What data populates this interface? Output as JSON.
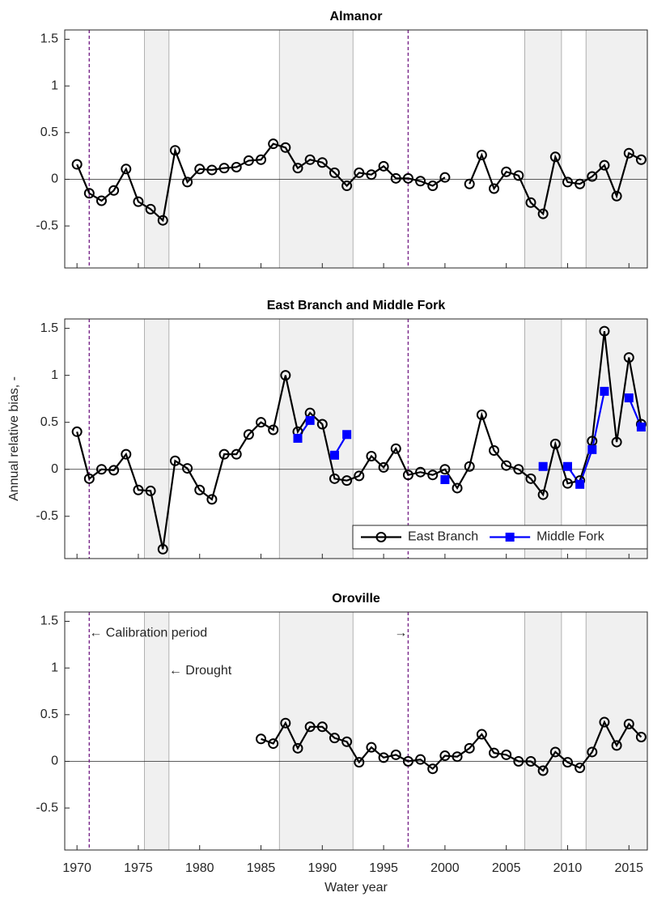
{
  "chart_data": [
    {
      "type": "line",
      "title": "Almanor",
      "x": [
        1970,
        1971,
        1972,
        1973,
        1974,
        1975,
        1976,
        1977,
        1978,
        1979,
        1980,
        1981,
        1982,
        1983,
        1984,
        1985,
        1986,
        1987,
        1988,
        1989,
        1990,
        1991,
        1992,
        1993,
        1994,
        1995,
        1996,
        1997,
        1998,
        1999,
        2000,
        2001,
        2002,
        2003,
        2004,
        2005,
        2006,
        2007,
        2008,
        2009,
        2010,
        2011,
        2012,
        2013,
        2014,
        2015,
        2016
      ],
      "series": [
        {
          "name": "East Branch",
          "color": "#000000",
          "marker": "circle",
          "values": [
            0.16,
            -0.15,
            -0.23,
            -0.12,
            0.11,
            -0.24,
            -0.32,
            -0.44,
            0.31,
            -0.03,
            0.11,
            0.1,
            0.12,
            0.13,
            0.2,
            0.21,
            0.38,
            0.34,
            0.12,
            0.21,
            0.18,
            0.07,
            -0.07,
            0.07,
            0.05,
            0.14,
            0.01,
            0.01,
            -0.02,
            -0.07,
            0.02,
            null,
            -0.05,
            0.26,
            -0.1,
            0.08,
            0.04,
            -0.25,
            -0.37,
            0.24,
            -0.03,
            -0.05,
            0.03,
            0.15,
            -0.18,
            0.28,
            0.21
          ]
        }
      ],
      "xlim": [
        1969,
        2016.5
      ],
      "ylim": [
        -0.95,
        1.6
      ],
      "xticks": [
        1970,
        1975,
        1980,
        1985,
        1990,
        1995,
        2000,
        2005,
        2010,
        2015
      ],
      "yticks": [
        -0.5,
        0,
        0.5,
        1,
        1.5
      ],
      "hline": 0,
      "shaded_regions": [
        [
          1975.5,
          1977.5
        ],
        [
          1986.5,
          1992.5
        ],
        [
          2006.5,
          2009.5
        ],
        [
          2011.5,
          2016.5
        ]
      ],
      "vlines": [
        1971,
        1997
      ]
    },
    {
      "type": "line",
      "title": "East Branch and Middle Fork",
      "y_label": "Annual relative bias, -",
      "x": [
        1970,
        1971,
        1972,
        1973,
        1974,
        1975,
        1976,
        1977,
        1978,
        1979,
        1980,
        1981,
        1982,
        1983,
        1984,
        1985,
        1986,
        1987,
        1988,
        1989,
        1990,
        1991,
        1992,
        1993,
        1994,
        1995,
        1996,
        1997,
        1998,
        1999,
        2000,
        2001,
        2002,
        2003,
        2004,
        2005,
        2006,
        2007,
        2008,
        2009,
        2010,
        2011,
        2012,
        2013,
        2014,
        2015,
        2016
      ],
      "series": [
        {
          "name": "East Branch",
          "color": "#000000",
          "marker": "circle",
          "values": [
            0.4,
            -0.1,
            0.0,
            -0.01,
            0.16,
            -0.22,
            -0.23,
            -0.85,
            0.09,
            0.01,
            -0.22,
            -0.32,
            0.16,
            0.16,
            0.37,
            0.5,
            0.42,
            1.0,
            0.4,
            0.6,
            0.48,
            -0.1,
            -0.12,
            -0.07,
            0.14,
            0.02,
            0.22,
            -0.06,
            -0.03,
            -0.06,
            0.0,
            -0.2,
            0.03,
            0.58,
            0.2,
            0.04,
            0.0,
            -0.1,
            -0.27,
            0.27,
            -0.15,
            -0.12,
            0.3,
            1.47,
            0.29,
            1.19,
            0.48
          ]
        },
        {
          "name": "Middle Fork",
          "color": "#0000ff",
          "marker": "square",
          "values": [
            null,
            null,
            null,
            null,
            null,
            null,
            null,
            null,
            null,
            null,
            null,
            null,
            null,
            null,
            null,
            null,
            null,
            null,
            0.33,
            0.52,
            null,
            0.15,
            0.37,
            null,
            null,
            null,
            null,
            null,
            null,
            null,
            -0.11,
            null,
            null,
            null,
            null,
            null,
            null,
            null,
            0.03,
            null,
            0.03,
            -0.16,
            0.21,
            0.83,
            null,
            0.76,
            0.45
          ]
        }
      ],
      "xlim": [
        1969,
        2016.5
      ],
      "ylim": [
        -0.95,
        1.6
      ],
      "xticks": [
        1970,
        1975,
        1980,
        1985,
        1990,
        1995,
        2000,
        2005,
        2010,
        2015
      ],
      "yticks": [
        -0.5,
        0,
        0.5,
        1,
        1.5
      ],
      "hline": 0,
      "legend": "lower right",
      "shaded_regions": [
        [
          1975.5,
          1977.5
        ],
        [
          1986.5,
          1992.5
        ],
        [
          2006.5,
          2009.5
        ],
        [
          2011.5,
          2016.5
        ]
      ],
      "vlines": [
        1971,
        1997
      ]
    },
    {
      "type": "line",
      "title": "Oroville",
      "x_label": "Water year",
      "x": [
        1970,
        1971,
        1972,
        1973,
        1974,
        1975,
        1976,
        1977,
        1978,
        1979,
        1980,
        1981,
        1982,
        1983,
        1984,
        1985,
        1986,
        1987,
        1988,
        1989,
        1990,
        1991,
        1992,
        1993,
        1994,
        1995,
        1996,
        1997,
        1998,
        1999,
        2000,
        2001,
        2002,
        2003,
        2004,
        2005,
        2006,
        2007,
        2008,
        2009,
        2010,
        2011,
        2012,
        2013,
        2014,
        2015,
        2016
      ],
      "series": [
        {
          "name": "East Branch",
          "color": "#000000",
          "marker": "circle",
          "values": [
            null,
            null,
            null,
            null,
            null,
            null,
            null,
            null,
            null,
            null,
            null,
            null,
            null,
            null,
            null,
            0.24,
            0.19,
            0.41,
            0.14,
            0.37,
            0.37,
            0.25,
            0.21,
            -0.01,
            0.15,
            0.04,
            0.07,
            0.0,
            0.02,
            -0.08,
            0.06,
            0.05,
            0.14,
            0.29,
            0.09,
            0.07,
            0.0,
            0.0,
            -0.1,
            0.1,
            -0.01,
            -0.07,
            0.1,
            0.42,
            0.17,
            0.4,
            0.26
          ]
        }
      ],
      "xlim": [
        1969,
        2016.5
      ],
      "ylim": [
        -0.95,
        1.6
      ],
      "xticks": [
        1970,
        1975,
        1980,
        1985,
        1990,
        1995,
        2000,
        2005,
        2010,
        2015
      ],
      "yticks": [
        -0.5,
        0,
        0.5,
        1,
        1.5
      ],
      "hline": 0,
      "shaded_regions": [
        [
          1975.5,
          1977.5
        ],
        [
          1986.5,
          1992.5
        ],
        [
          2006.5,
          2009.5
        ],
        [
          2011.5,
          2016.5
        ]
      ],
      "vlines": [
        1971,
        1997
      ],
      "annotations": [
        {
          "text": "← Calibration period",
          "x": 1971,
          "y": 1.37
        },
        {
          "text": "← Drought",
          "x": 1977.5,
          "y": 0.97
        },
        {
          "text": "→",
          "x": 1997,
          "y": 1.37
        }
      ]
    }
  ]
}
